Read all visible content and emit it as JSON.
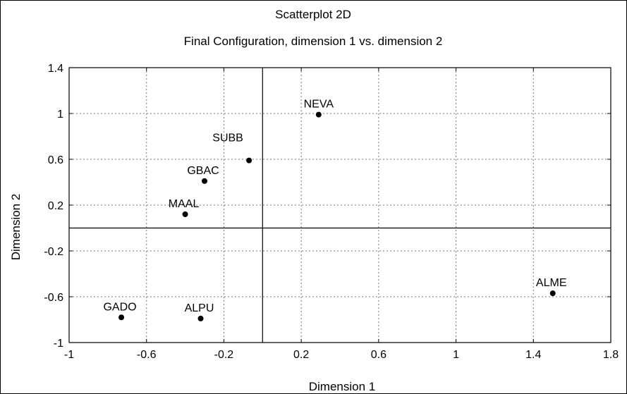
{
  "chart_data": {
    "type": "scatter",
    "title": "Scatterplot 2D",
    "subtitle": "Final Configuration, dimension 1  vs. dimension 2",
    "xlabel": "Dimension 1",
    "ylabel": "Dimension 2",
    "xlim": [
      -1,
      1.8
    ],
    "ylim": [
      -1,
      1.4
    ],
    "xticks": [
      "-1",
      "-0.6",
      "-0.2",
      "0.2",
      "0.6",
      "1",
      "1.4",
      "1.8"
    ],
    "yticks": [
      "1.4",
      "1",
      "0.6",
      "0.2",
      "-0.2",
      "-0.6",
      "-1"
    ],
    "grid": true,
    "points": [
      {
        "label": "NEVA",
        "x": 0.29,
        "y": 0.99
      },
      {
        "label": "SUBB",
        "x": -0.07,
        "y": 0.59
      },
      {
        "label": "GBAC",
        "x": -0.3,
        "y": 0.41
      },
      {
        "label": "MAAL",
        "x": -0.4,
        "y": 0.12
      },
      {
        "label": "GADO",
        "x": -0.73,
        "y": -0.78
      },
      {
        "label": "ALPU",
        "x": -0.32,
        "y": -0.79
      },
      {
        "label": "ALME",
        "x": 1.5,
        "y": -0.57
      }
    ]
  }
}
